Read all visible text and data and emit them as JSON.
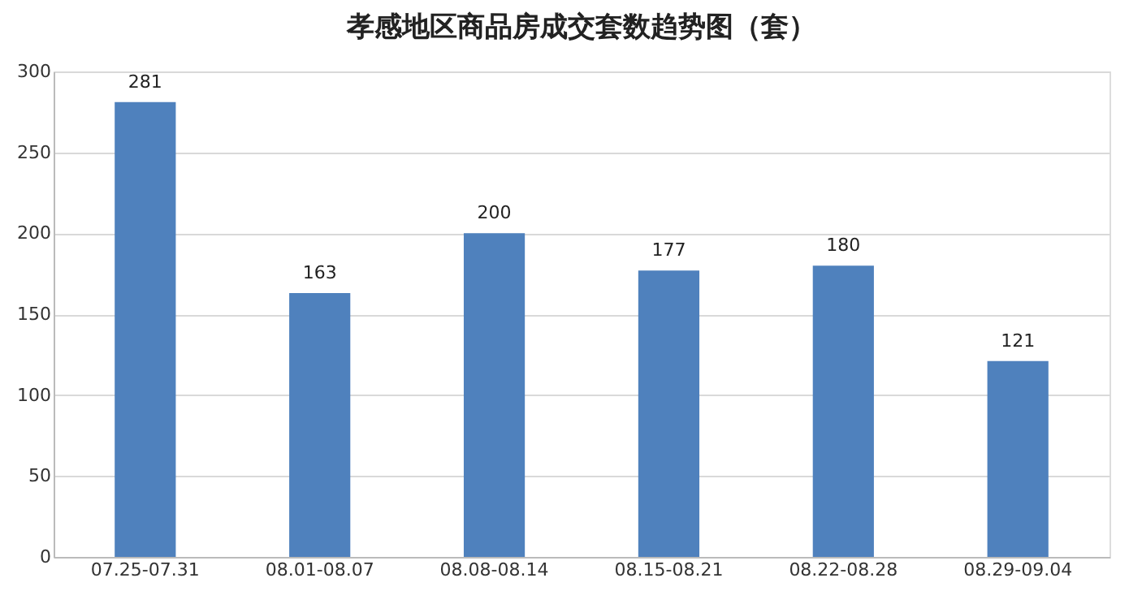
{
  "chart_data": {
    "type": "bar",
    "title": "孝感地区商品房成交套数趋势图（套）",
    "categories": [
      "07.25-07.31",
      "08.01-08.07",
      "08.08-08.14",
      "08.15-08.21",
      "08.22-08.28",
      "08.29-09.04"
    ],
    "values": [
      281,
      163,
      200,
      177,
      180,
      121
    ],
    "color": "#4f81bd",
    "ylim": [
      0,
      300
    ],
    "yticks": [
      0,
      50,
      100,
      150,
      200,
      250,
      300
    ],
    "grid": "y",
    "data_labels": true
  }
}
